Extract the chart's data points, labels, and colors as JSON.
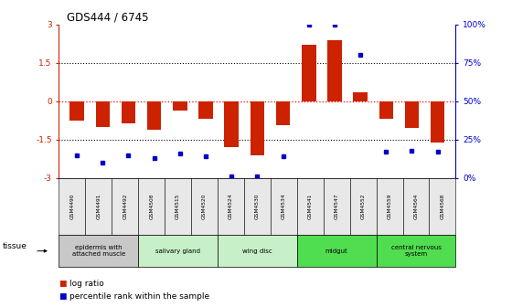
{
  "title": "GDS444 / 6745",
  "samples": [
    "GSM4490",
    "GSM4491",
    "GSM4492",
    "GSM4508",
    "GSM4515",
    "GSM4520",
    "GSM4524",
    "GSM4530",
    "GSM4534",
    "GSM4541",
    "GSM4547",
    "GSM4552",
    "GSM4559",
    "GSM4564",
    "GSM4568"
  ],
  "log_ratio": [
    -0.75,
    -1.0,
    -0.85,
    -1.1,
    -0.35,
    -0.7,
    -1.8,
    -2.1,
    -0.95,
    2.2,
    2.4,
    0.35,
    -0.7,
    -1.05,
    -1.6
  ],
  "percentile": [
    15,
    10,
    15,
    13,
    16,
    14,
    1,
    1,
    14,
    100,
    100,
    80,
    17,
    18,
    17
  ],
  "groups": [
    {
      "label": "epidermis with\nattached muscle",
      "start": 0,
      "end": 2,
      "color": "#c8c8c8"
    },
    {
      "label": "salivary gland",
      "start": 3,
      "end": 5,
      "color": "#c8f0c8"
    },
    {
      "label": "wing disc",
      "start": 6,
      "end": 8,
      "color": "#c8f0c8"
    },
    {
      "label": "midgut",
      "start": 9,
      "end": 11,
      "color": "#50dd50"
    },
    {
      "label": "central nervous\nsystem",
      "start": 12,
      "end": 14,
      "color": "#50dd50"
    }
  ],
  "bar_color": "#cc2200",
  "dot_color": "#0000cc",
  "ylim_left": [
    -3,
    3
  ],
  "yticks_left": [
    -3,
    -1.5,
    0,
    1.5,
    3
  ],
  "ytick_labels_left": [
    "-3",
    "-1.5",
    "0",
    "1.5",
    "3"
  ],
  "yticks_right_pct": [
    0,
    25,
    50,
    75,
    100
  ],
  "ytick_labels_right": [
    "0%",
    "25%",
    "50%",
    "75%",
    "100%"
  ],
  "background_color": "#ffffff"
}
